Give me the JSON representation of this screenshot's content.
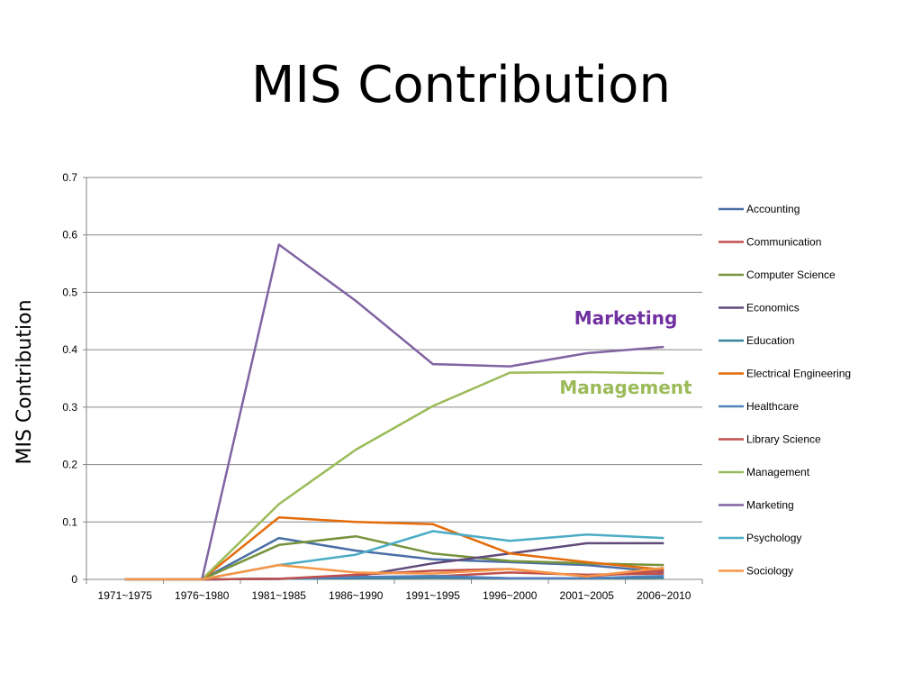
{
  "slide": {
    "title": "MIS Contribution"
  },
  "chart_data": {
    "type": "line",
    "title": "",
    "xlabel": "",
    "ylabel": "MIS Contribution",
    "ylim": [
      0,
      0.7
    ],
    "yticks": [
      "0",
      "0.1",
      "0.2",
      "0.3",
      "0.4",
      "0.5",
      "0.6",
      "0.7"
    ],
    "grid": true,
    "legend": "right",
    "categories": [
      "1971~1975",
      "1976~1980",
      "1981~1985",
      "1986~1990",
      "1991~1995",
      "1996~2000",
      "2001~2005",
      "2006~2010"
    ],
    "series": [
      {
        "name": "Accounting",
        "color": "#4A6FA5",
        "values": [
          0,
          0,
          0.072,
          0.05,
          0.035,
          0.03,
          0.025,
          0.013
        ]
      },
      {
        "name": "Communication",
        "color": "#C0504D",
        "values": [
          0,
          0,
          0.001,
          0.003,
          0.005,
          0.012,
          0.008,
          0.01
        ]
      },
      {
        "name": "Computer Science",
        "color": "#77933C",
        "values": [
          0,
          0,
          0.06,
          0.075,
          0.045,
          0.032,
          0.028,
          0.025
        ]
      },
      {
        "name": "Economics",
        "color": "#604A7B",
        "values": [
          0,
          0,
          0.001,
          0.005,
          0.028,
          0.045,
          0.063,
          0.063
        ]
      },
      {
        "name": "Education",
        "color": "#31859C",
        "values": [
          0,
          0,
          0.001,
          0.002,
          0.003,
          0.002,
          0.002,
          0.003
        ]
      },
      {
        "name": "Electrical Engineering",
        "color": "#E46C0A",
        "values": [
          0,
          0,
          0.108,
          0.1,
          0.096,
          0.045,
          0.03,
          0.017
        ]
      },
      {
        "name": "Healthcare",
        "color": "#4F81BD",
        "values": [
          0,
          0,
          0.001,
          0.004,
          0.006,
          0.002,
          0.002,
          0.006
        ]
      },
      {
        "name": "Library Science",
        "color": "#C0504D",
        "values": [
          0,
          0,
          0.001,
          0.008,
          0.015,
          0.018,
          0.005,
          0.015
        ]
      },
      {
        "name": "Management",
        "color": "#9BBB59",
        "values": [
          0,
          0,
          0.131,
          0.226,
          0.302,
          0.36,
          0.361,
          0.359
        ]
      },
      {
        "name": "Marketing",
        "color": "#8064A2",
        "values": [
          0,
          0,
          0.583,
          0.485,
          0.375,
          0.371,
          0.394,
          0.405
        ]
      },
      {
        "name": "Psychology",
        "color": "#4BACC6",
        "values": [
          0,
          0,
          0.025,
          0.043,
          0.084,
          0.067,
          0.078,
          0.072
        ]
      },
      {
        "name": "Sociology",
        "color": "#F79646",
        "values": [
          0,
          0,
          0.025,
          0.012,
          0.01,
          0.018,
          0.005,
          0.02
        ]
      }
    ],
    "annotations": [
      {
        "text": "Marketing",
        "color": "#7030A0"
      },
      {
        "text": "Management",
        "color": "#9BBB59"
      }
    ]
  }
}
